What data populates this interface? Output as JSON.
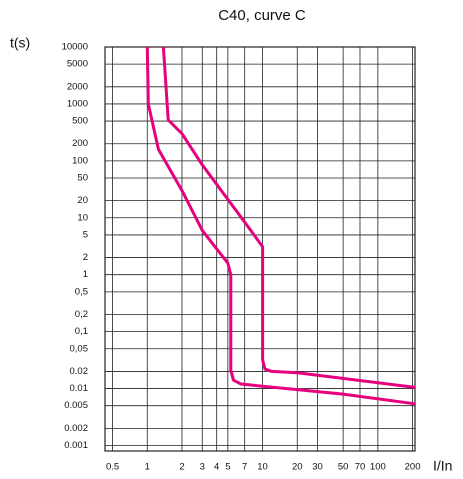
{
  "chart_data": {
    "type": "line",
    "title": "C40, curve C",
    "ylabel": "t(s)",
    "xlabel": "I/In",
    "xscale": "log",
    "yscale": "log",
    "grid": true,
    "xlim": [
      0.43,
      210
    ],
    "ylim": [
      0.0008,
      10000
    ],
    "xticks": [
      0.5,
      1,
      2,
      3,
      4,
      5,
      7,
      10,
      20,
      30,
      50,
      70,
      100,
      200
    ],
    "yticks": [
      10000,
      5000,
      2000,
      1000,
      500,
      200,
      100,
      50,
      20,
      10,
      5,
      2,
      1,
      {
        "value": 0.5,
        "label": "0,5"
      },
      {
        "value": 0.2,
        "label": "0,2"
      },
      {
        "value": 0.1,
        "label": "0,1"
      },
      {
        "value": 0.05,
        "label": "0,05"
      },
      0.02,
      0.01,
      0.005,
      0.002,
      0.001
    ],
    "series": [
      {
        "color": "#e6007e",
        "x": [
          1,
          1.02,
          1.25,
          2,
          3,
          5,
          5.3,
          5.3,
          5.6,
          6.5,
          10,
          50,
          210
        ],
        "values": [
          10000,
          1000,
          160,
          30,
          6,
          1.6,
          1,
          0.021,
          0.014,
          0.012,
          0.011,
          0.008,
          0.0054
        ]
      },
      {
        "color": "#e6007e",
        "x": [
          1.38,
          1.52,
          2,
          3,
          5,
          7,
          10,
          10,
          10.5,
          12,
          20,
          210
        ],
        "values": [
          10000,
          525,
          300,
          85,
          21,
          8.4,
          3.1,
          0.032,
          0.022,
          0.02,
          0.019,
          0.0105
        ]
      }
    ]
  }
}
